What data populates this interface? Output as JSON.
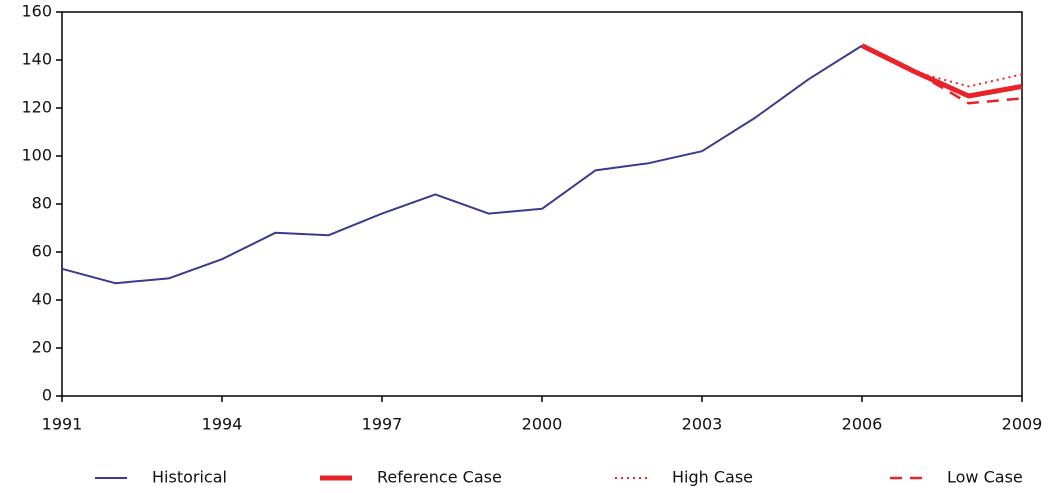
{
  "chart_data": {
    "type": "line",
    "x": [
      1991,
      1992,
      1993,
      1994,
      1995,
      1996,
      1997,
      1998,
      1999,
      2000,
      2001,
      2002,
      2003,
      2004,
      2005,
      2006,
      2007,
      2008,
      2009
    ],
    "series": [
      {
        "name": "Historical",
        "color": "#3b3a8e",
        "line_style": "solid",
        "values": [
          53,
          47,
          49,
          57,
          68,
          67,
          76,
          84,
          76,
          78,
          94,
          97,
          102,
          116,
          132,
          146,
          null,
          null,
          null
        ]
      },
      {
        "name": "Reference Case",
        "color": "#e8232a",
        "line_style": "thick",
        "values": [
          null,
          null,
          null,
          null,
          null,
          null,
          null,
          null,
          null,
          null,
          null,
          null,
          null,
          null,
          null,
          146,
          135,
          125,
          129
        ]
      },
      {
        "name": "High Case",
        "color": "#e8232a",
        "line_style": "dotted",
        "values": [
          null,
          null,
          null,
          null,
          null,
          null,
          null,
          null,
          null,
          null,
          null,
          null,
          null,
          null,
          null,
          null,
          135,
          129,
          134
        ]
      },
      {
        "name": "Low Case",
        "color": "#e8232a",
        "line_style": "dashed",
        "values": [
          null,
          null,
          null,
          null,
          null,
          null,
          null,
          null,
          null,
          null,
          null,
          null,
          null,
          null,
          null,
          null,
          135,
          122,
          124
        ]
      }
    ],
    "xlim": [
      1991,
      2009
    ],
    "xticks": [
      1991,
      1994,
      1997,
      2000,
      2003,
      2006,
      2009
    ],
    "ylim": [
      0,
      160
    ],
    "yticks": [
      0,
      20,
      40,
      60,
      80,
      100,
      120,
      140,
      160
    ],
    "grid": false
  }
}
